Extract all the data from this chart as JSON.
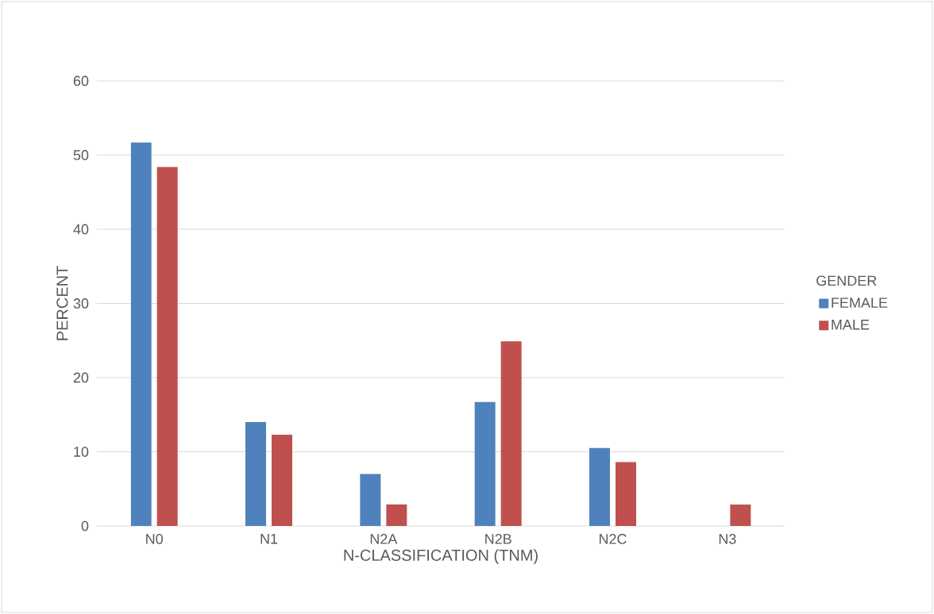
{
  "chart_data": {
    "type": "bar",
    "xlabel": "N-CLASSIFICATION (TNM)",
    "ylabel": "PERCENT",
    "legend_title": "GENDER",
    "categories": [
      "N0",
      "N1",
      "N2A",
      "N2B",
      "N2C",
      "N3"
    ],
    "series": [
      {
        "name": "FEMALE",
        "color": "#4f81bd",
        "values": [
          51.7,
          14.0,
          7.0,
          16.7,
          10.5,
          0
        ]
      },
      {
        "name": "MALE",
        "color": "#c0504d",
        "values": [
          48.4,
          12.3,
          2.9,
          24.9,
          8.6,
          2.9
        ]
      }
    ],
    "ylim": [
      0,
      60
    ],
    "yticks": [
      0,
      10,
      20,
      30,
      40,
      50,
      60
    ],
    "grid": "y",
    "legend": "right"
  }
}
